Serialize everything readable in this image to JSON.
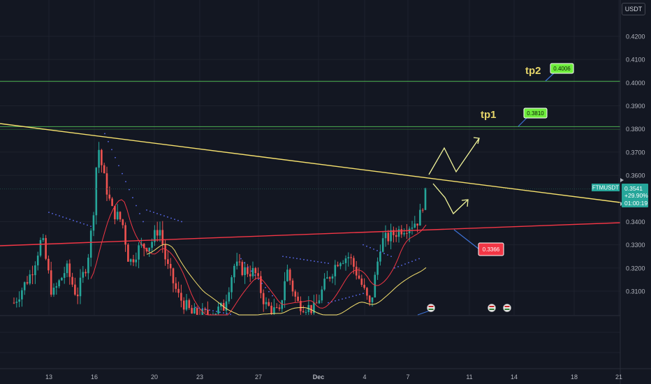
{
  "currency_button": "USDT",
  "chart_data": {
    "type": "candlestick",
    "symbol": "FTMUSDT",
    "price_axis": {
      "ticks": [
        "0.4200",
        "0.4100",
        "0.4000",
        "0.3900",
        "0.3800",
        "0.3700",
        "0.3600",
        "0.3400",
        "0.3300",
        "0.3200",
        "0.3100"
      ],
      "range": [
        0.3,
        0.43
      ]
    },
    "time_axis": {
      "ticks": [
        "13",
        "16",
        "20",
        "23",
        "27",
        "Dec",
        "4",
        "7",
        "11",
        "14",
        "18",
        "21"
      ]
    },
    "current_price": {
      "symbol": "FTMUSDT",
      "price": "0.3541",
      "change": "+29.90%",
      "countdown": "01:00:19",
      "value": 0.3541
    },
    "levels": [
      {
        "name": "tp2",
        "label": "tp2",
        "tag": "0.4006",
        "value": 0.4006,
        "color": "#4caf50"
      },
      {
        "name": "tp1",
        "label": "tp1",
        "tag": "0.3810",
        "value": 0.381,
        "color": "#4caf50"
      },
      {
        "name": "support",
        "tag": "0.3366",
        "value": 0.3366,
        "color": "#f23645"
      }
    ],
    "trendlines": [
      {
        "name": "descending-resistance",
        "color": "#f5e06e"
      },
      {
        "name": "ascending-support",
        "color": "#f23645"
      }
    ],
    "moving_averages": [
      {
        "name": "ma-fast",
        "color": "#f23645"
      },
      {
        "name": "ma-slow",
        "color": "#f5e06e"
      }
    ],
    "event_markers": 3,
    "colors": {
      "up": "#26a69a",
      "down": "#ef5350",
      "background": "#131722",
      "grid": "#1e222d"
    }
  }
}
